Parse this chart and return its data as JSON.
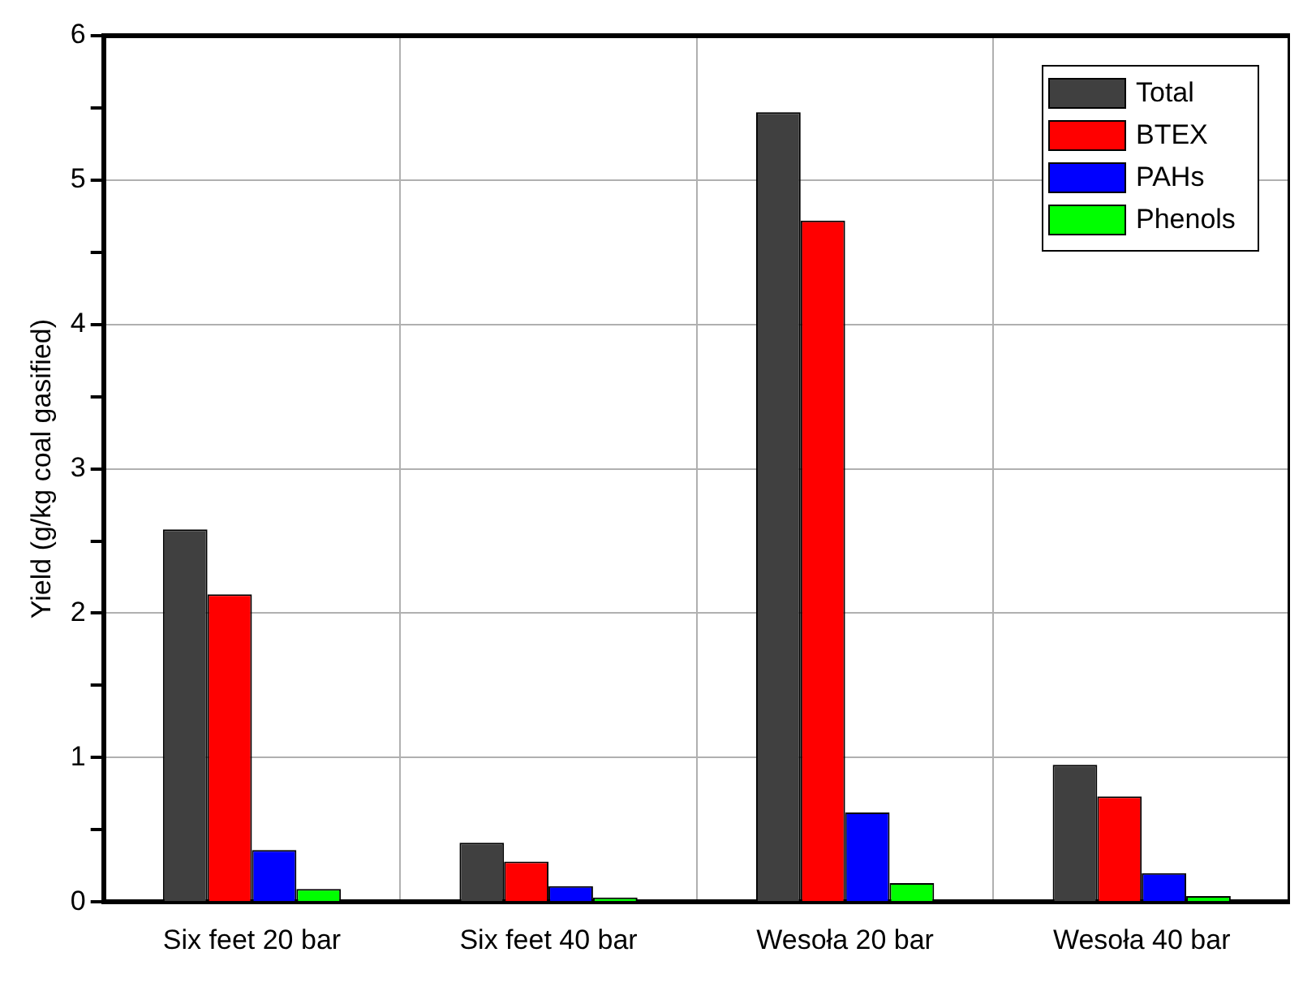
{
  "chart_data": {
    "type": "bar",
    "ylabel": "Yield (g/kg coal gasified)",
    "categories": [
      "Six feet 20 bar",
      "Six feet 40 bar",
      "Wesoła 20 bar",
      "Wesoła 40 bar"
    ],
    "series": [
      {
        "name": "Total",
        "color": "#404040",
        "values": [
          2.58,
          0.41,
          5.47,
          0.95
        ]
      },
      {
        "name": "BTEX",
        "color": "#ff0000",
        "values": [
          2.13,
          0.28,
          4.72,
          0.73
        ]
      },
      {
        "name": "PAHs",
        "color": "#0000ff",
        "values": [
          0.36,
          0.11,
          0.62,
          0.2
        ]
      },
      {
        "name": "Phenols",
        "color": "#00ff00",
        "values": [
          0.09,
          0.03,
          0.13,
          0.04
        ]
      }
    ],
    "ylim": [
      0,
      6
    ],
    "yticks": [
      0,
      {
        "value": 0.5,
        "label": null
      },
      1,
      {
        "value": 1.5,
        "label": null
      },
      2,
      {
        "value": 2.5,
        "label": null
      },
      3,
      {
        "value": 3.5,
        "label": null
      },
      4,
      {
        "value": 4.5,
        "label": null
      },
      5,
      {
        "value": 5.5,
        "label": null
      },
      6
    ],
    "grid": true,
    "legend": "top right"
  }
}
